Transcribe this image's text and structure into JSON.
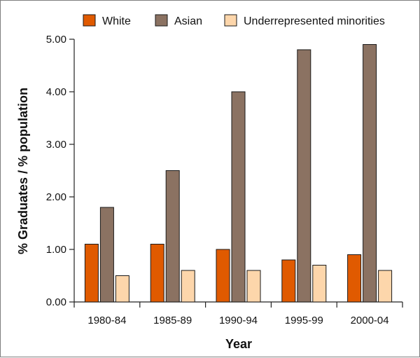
{
  "chart_data": {
    "type": "bar",
    "title": "",
    "xlabel": "Year",
    "ylabel": "% Graduates / % population",
    "categories": [
      "1980-84",
      "1985-89",
      "1990-94",
      "1995-99",
      "2000-04"
    ],
    "series": [
      {
        "name": "White",
        "color": "#e05a00",
        "values": [
          1.1,
          1.1,
          1.0,
          0.8,
          0.9
        ]
      },
      {
        "name": "Asian",
        "color": "#8b7262",
        "values": [
          1.8,
          2.5,
          4.0,
          4.8,
          4.9
        ]
      },
      {
        "name": "Underrepresented minorities",
        "color": "#fdd6ab",
        "values": [
          0.5,
          0.6,
          0.6,
          0.7,
          0.6
        ]
      }
    ],
    "ylim": [
      0,
      5
    ],
    "yticks": [
      0,
      1,
      2,
      3,
      4,
      5
    ],
    "ytick_labels": [
      "0.00",
      "1.00",
      "2.00",
      "3.00",
      "4.00",
      "5.00"
    ],
    "grid": false,
    "legend_position": "top"
  }
}
